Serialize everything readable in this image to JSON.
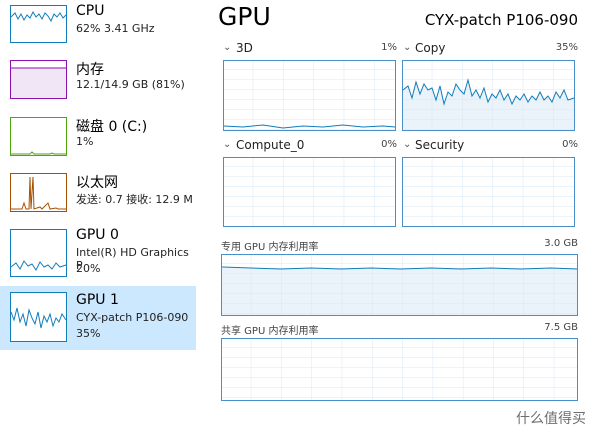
{
  "sidebar": {
    "items": [
      {
        "name": "CPU",
        "detail": "62% 3.41 GHz"
      },
      {
        "name": "内存",
        "detail": "12.1/14.9 GB (81%)"
      },
      {
        "name": "磁盘 0 (C:)",
        "detail": "1%"
      },
      {
        "name": "以太网",
        "detail": "发送: 0.7 接收: 12.9 M"
      },
      {
        "name": "GPU 0",
        "detail": "Intel(R) HD Graphics P",
        "value": "20%"
      },
      {
        "name": "GPU 1",
        "detail": "CYX-patch P106-090",
        "value": "35%"
      }
    ]
  },
  "main": {
    "title": "GPU",
    "device": "CYX-patch P106-090",
    "graphs": [
      {
        "label": "3D",
        "value": "1%"
      },
      {
        "label": "Copy",
        "value": "35%"
      },
      {
        "label": "Compute_0",
        "value": "0%"
      },
      {
        "label": "Security",
        "value": "0%"
      }
    ],
    "memory": [
      {
        "label": "专用 GPU 内存利用率",
        "value": "3.0 GB"
      },
      {
        "label": "共享 GPU 内存利用率",
        "value": "7.5 GB"
      }
    ]
  },
  "watermark": "什么值得买"
}
